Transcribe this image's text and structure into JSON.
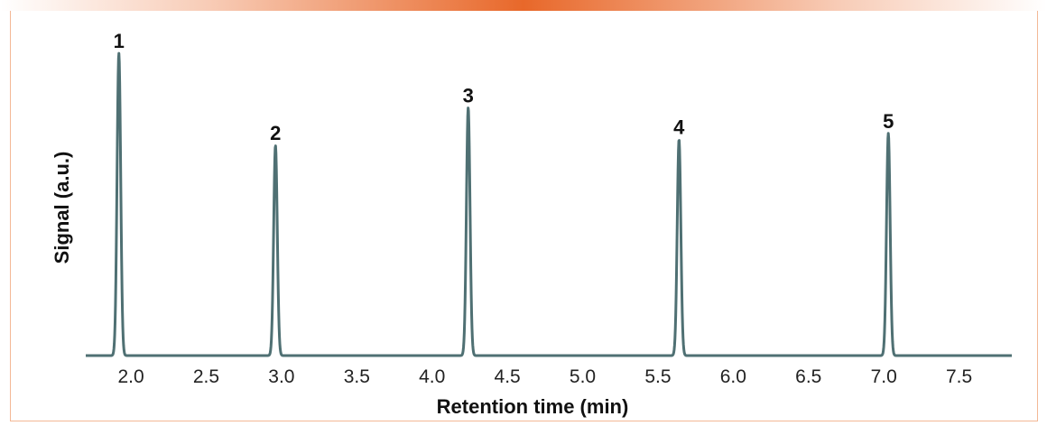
{
  "chart_data": {
    "type": "line",
    "title": "",
    "xlabel": "Retention time (min)",
    "ylabel": "Signal (a.u.)",
    "xlim": [
      1.7,
      7.85
    ],
    "ylim": [
      0,
      1
    ],
    "x_ticks": [
      "2.0",
      "2.5",
      "3.0",
      "3.5",
      "4.0",
      "4.5",
      "5.0",
      "5.5",
      "6.0",
      "6.5",
      "7.0",
      "7.5"
    ],
    "y_ticks": [],
    "grid": false,
    "line_color": "#4f7073",
    "peaks": [
      {
        "label": "1",
        "x": 1.92,
        "y": 1.0
      },
      {
        "label": "2",
        "x": 2.96,
        "y": 0.695
      },
      {
        "label": "3",
        "x": 4.24,
        "y": 0.82
      },
      {
        "label": "4",
        "x": 5.64,
        "y": 0.715
      },
      {
        "label": "5",
        "x": 7.03,
        "y": 0.735
      }
    ]
  },
  "colors": {
    "accent": "#e8682a",
    "frame_border": "#f3b896",
    "line": "#4f7073"
  }
}
